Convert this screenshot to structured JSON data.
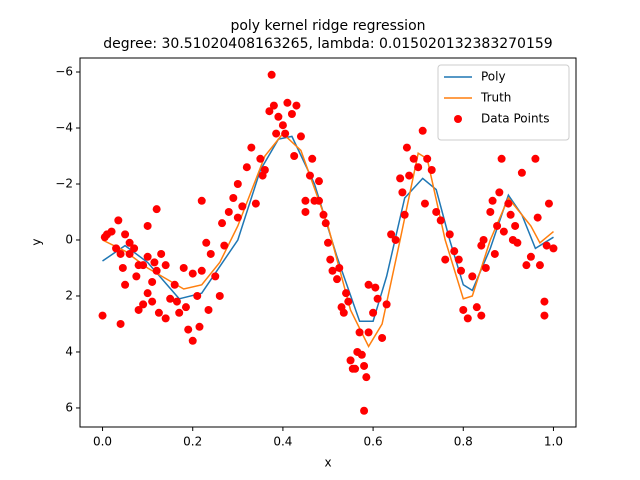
{
  "chart_data": {
    "type": "line",
    "title": "poly kernel ridge regression",
    "subtitle": "degree: 30.51020408163265, lambda: 0.015020132383270159",
    "x_label": "x",
    "y_label": "y",
    "xlim": [
      -0.05,
      1.05
    ],
    "ylim": [
      6.68,
      -6.5
    ],
    "xticks": [
      {
        "value": 0,
        "label": "0.0"
      },
      0.2,
      0.4,
      0.6,
      0.8,
      {
        "value": 1,
        "label": "1.0"
      }
    ],
    "yticks": [
      {
        "value": -6,
        "label": "−6"
      },
      {
        "value": -4,
        "label": "−4"
      },
      {
        "value": -2,
        "label": "−2"
      },
      0,
      2,
      4,
      6
    ],
    "legend": "upper right",
    "series": [
      {
        "name": "Poly",
        "type": "line",
        "color": "#1f77b4",
        "x": [
          0,
          0.05,
          0.1,
          0.17,
          0.22,
          0.3,
          0.35,
          0.39,
          0.42,
          0.47,
          0.52,
          0.57,
          0.6,
          0.63,
          0.67,
          0.71,
          0.74,
          0.77,
          0.8,
          0.82,
          0.86,
          0.9,
          0.93,
          0.96,
          1.0
        ],
        "values": [
          0.75,
          0.2,
          0.8,
          2.1,
          1.9,
          0,
          -2.5,
          -3.6,
          -3.7,
          -2,
          0.6,
          2.9,
          2.9,
          1.3,
          -1.5,
          -2.2,
          -1.8,
          0,
          1.6,
          1.8,
          0.3,
          -1.6,
          -0.9,
          0.3,
          -0.1
        ]
      },
      {
        "name": "Truth",
        "type": "line",
        "color": "#ff7f0e",
        "x": [
          0,
          0.05,
          0.1,
          0.18,
          0.22,
          0.26,
          0.3,
          0.36,
          0.4,
          0.44,
          0.5,
          0.55,
          0.59,
          0.62,
          0.66,
          0.7,
          0.72,
          0.76,
          0.8,
          0.82,
          0.86,
          0.9,
          0.95,
          0.97,
          1.0
        ],
        "values": [
          0,
          0.4,
          1.0,
          1.75,
          1.6,
          0.8,
          -0.5,
          -3,
          -3.8,
          -3.2,
          -0.5,
          2.5,
          3.8,
          3,
          0,
          -3.1,
          -2.9,
          0,
          2.1,
          2,
          0,
          -1.5,
          -0.5,
          0.1,
          -0.3
        ]
      },
      {
        "name": "Data Points",
        "type": "scatter",
        "color": "#ff0000",
        "x": [
          0,
          0.005,
          0.01,
          0.02,
          0.03,
          0.035,
          0.04,
          0.04,
          0.045,
          0.05,
          0.05,
          0.06,
          0.06,
          0.07,
          0.075,
          0.08,
          0.08,
          0.09,
          0.09,
          0.1,
          0.1,
          0.1,
          0.11,
          0.11,
          0.115,
          0.12,
          0.12,
          0.125,
          0.13,
          0.14,
          0.14,
          0.15,
          0.16,
          0.165,
          0.17,
          0.18,
          0.185,
          0.19,
          0.2,
          0.2,
          0.21,
          0.215,
          0.22,
          0.22,
          0.23,
          0.235,
          0.24,
          0.25,
          0.26,
          0.265,
          0.27,
          0.28,
          0.29,
          0.3,
          0.3,
          0.31,
          0.32,
          0.33,
          0.34,
          0.35,
          0.355,
          0.36,
          0.37,
          0.375,
          0.38,
          0.385,
          0.39,
          0.4,
          0.405,
          0.41,
          0.42,
          0.425,
          0.43,
          0.44,
          0.45,
          0.45,
          0.46,
          0.465,
          0.47,
          0.48,
          0.48,
          0.49,
          0.495,
          0.5,
          0.505,
          0.51,
          0.52,
          0.525,
          0.53,
          0.535,
          0.54,
          0.545,
          0.55,
          0.555,
          0.56,
          0.565,
          0.57,
          0.575,
          0.58,
          0.585,
          0.58,
          0.59,
          0.59,
          0.6,
          0.605,
          0.61,
          0.62,
          0.63,
          0.64,
          0.65,
          0.66,
          0.665,
          0.67,
          0.675,
          0.68,
          0.69,
          0.7,
          0.71,
          0.715,
          0.72,
          0.73,
          0.74,
          0.75,
          0.76,
          0.77,
          0.78,
          0.79,
          0.795,
          0.8,
          0.81,
          0.82,
          0.83,
          0.84,
          0.84,
          0.845,
          0.85,
          0.86,
          0.865,
          0.87,
          0.875,
          0.88,
          0.885,
          0.89,
          0.9,
          0.905,
          0.91,
          0.915,
          0.92,
          0.93,
          0.94,
          0.95,
          0.96,
          0.965,
          0.97,
          0.98,
          0.98,
          0.985,
          0.99,
          1.0
        ],
        "values": [
          2.7,
          -0.1,
          -0.2,
          -0.3,
          0.3,
          -0.7,
          3,
          0.5,
          1.0,
          -0.2,
          1.6,
          0.1,
          0.5,
          0.3,
          1.3,
          2.5,
          0.9,
          0.9,
          2.3,
          1.9,
          -0.5,
          0.6,
          1.5,
          2.2,
          0.8,
          -1.1,
          1.1,
          2.6,
          0.5,
          2.8,
          0.9,
          2.1,
          1.6,
          2.2,
          2.6,
          1.0,
          2.4,
          3.2,
          3.6,
          1.2,
          2.0,
          3.1,
          -1.4,
          1.1,
          0.1,
          2.5,
          0.5,
          1.3,
          2.0,
          -0.6,
          0.2,
          -1.0,
          -1.5,
          -2.0,
          -0.8,
          -1.2,
          -2.6,
          -3.3,
          -1.3,
          -2.9,
          -2.3,
          -2.5,
          -4.6,
          -5.9,
          -4.8,
          -3.8,
          -4.4,
          -4.1,
          -3.8,
          -4.9,
          -4.5,
          -3.0,
          -4.8,
          -3.7,
          -1.4,
          -1.0,
          -2.3,
          -2.9,
          -1.4,
          -1.4,
          -2.1,
          -0.9,
          -0.6,
          0.1,
          0.7,
          1.1,
          1.4,
          1.0,
          2.4,
          2.6,
          1.9,
          2.2,
          4.3,
          4.6,
          4.6,
          4.0,
          3.3,
          4.1,
          4.5,
          4.9,
          6.1,
          1.6,
          3.3,
          2.6,
          1.7,
          2.1,
          3.5,
          2.3,
          -0.2,
          0,
          -2.2,
          -1.7,
          -0.9,
          -3.3,
          -2.3,
          -2.9,
          -2.6,
          -3.9,
          -1.3,
          -2.9,
          -2.5,
          -1.0,
          -0.7,
          0.7,
          -0.2,
          0.4,
          0.7,
          1.1,
          2.5,
          2.8,
          1.3,
          2.4,
          0.2,
          2.7,
          0,
          1.0,
          -1.0,
          -1.4,
          0.5,
          -0.5,
          -1.7,
          -2.9,
          -0.3,
          -1.3,
          -0.9,
          0,
          -0.5,
          0.1,
          -2.4,
          0.9,
          0.6,
          -2.9,
          -0.8,
          0.9,
          2.2,
          2.7,
          0.2,
          -1.3,
          0.3
        ]
      }
    ]
  }
}
